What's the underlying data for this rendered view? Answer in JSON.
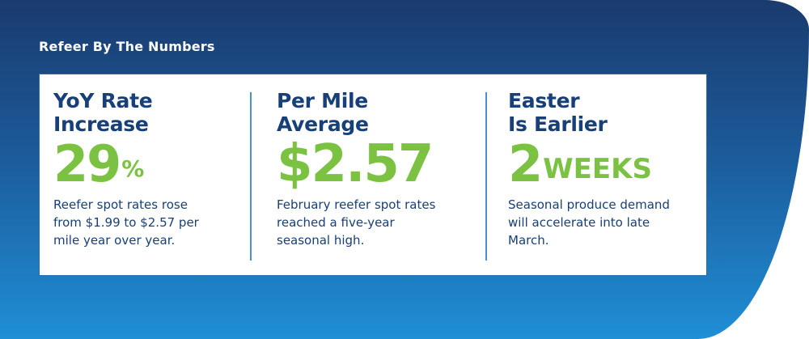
{
  "title": "Refeer By The Numbers",
  "stats": [
    {
      "heading_line1": "YoY Rate",
      "heading_line2": "Increase",
      "figure": "29",
      "unit": "%",
      "description": "Reefer spot rates rose from $1.99 to $2.57 per mile year over year."
    },
    {
      "heading_line1": "Per Mile",
      "heading_line2": "Average",
      "figure": "$2.57",
      "unit": "",
      "description": "February reefer spot rates reached a five-year seasonal high."
    },
    {
      "heading_line1": "Easter",
      "heading_line2": "Is Earlier",
      "figure": "2",
      "unit": "WEEKS",
      "description": "Seasonal produce demand will accelerate into late March."
    }
  ],
  "colors": {
    "heading": "#173f78",
    "figure": "#7cc242",
    "background_top": "#1a3b6e",
    "background_bottom": "#1f8fd6"
  }
}
